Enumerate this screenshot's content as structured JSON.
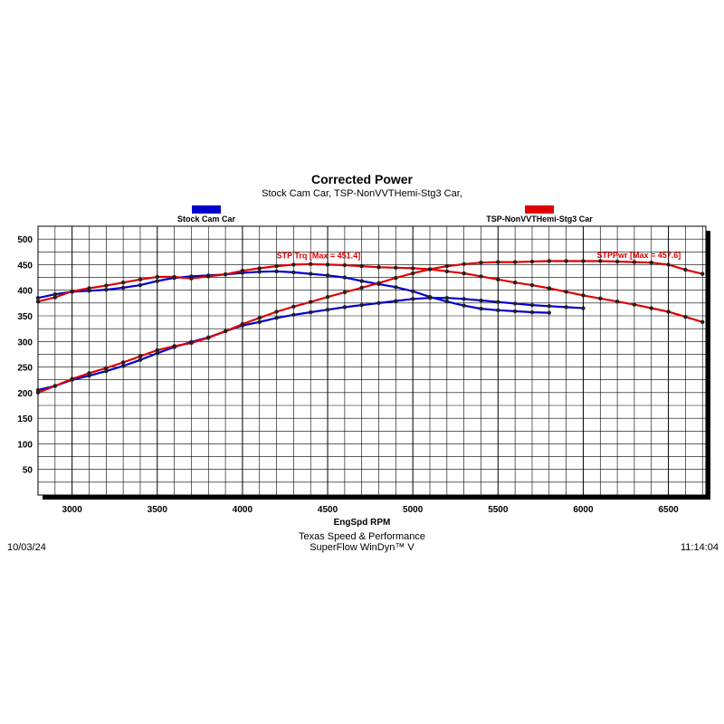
{
  "chart_data": {
    "type": "line",
    "title": "Corrected Power",
    "subtitle": "Stock Cam Car, TSP-NonVVTHemi-Stg3 Car,",
    "xlabel": "EngSpd RPM",
    "ylabel": "",
    "xlim": [
      2800,
      6720
    ],
    "ylim": [
      0,
      525
    ],
    "xticks": [
      3000,
      3500,
      4000,
      4500,
      5000,
      5500,
      6000,
      6500
    ],
    "yticks": [
      50,
      100,
      150,
      200,
      250,
      300,
      350,
      400,
      450,
      500
    ],
    "grid": true,
    "legend": [
      {
        "name": "Stock Cam Car",
        "color": "#0000cc"
      },
      {
        "name": "TSP-NonVVTHemi-Stg3 Car",
        "color": "#e00000"
      }
    ],
    "annotations": [
      {
        "text": "STP Trq [Max = 451.4]",
        "x": 4200,
        "y": 462
      },
      {
        "text": "STPPwr [Max = 457.6]",
        "x": 6080,
        "y": 463
      }
    ],
    "x": [
      2800,
      2900,
      3000,
      3100,
      3200,
      3300,
      3400,
      3500,
      3600,
      3700,
      3800,
      3900,
      4000,
      4100,
      4200,
      4300,
      4400,
      4500,
      4600,
      4700,
      4800,
      4900,
      5000,
      5100,
      5200,
      5300,
      5400,
      5500,
      5600,
      5700,
      5800,
      5900,
      6000,
      6100,
      6200,
      6300,
      6400,
      6500,
      6600,
      6700
    ],
    "series": [
      {
        "name": "Stock Cam Car",
        "metric": "Torque",
        "color": "#0000cc",
        "values": [
          385,
          392,
          397,
          399,
          401,
          405,
          410,
          418,
          424,
          427,
          429,
          431,
          434,
          436,
          437,
          435,
          432,
          429,
          425,
          418,
          412,
          406,
          398,
          387,
          378,
          370,
          364,
          361,
          359,
          357,
          356,
          null,
          null,
          null,
          null,
          null,
          null,
          null,
          null,
          null
        ]
      },
      {
        "name": "Stock Cam Car",
        "metric": "Power",
        "color": "#0000cc",
        "values": [
          205,
          213,
          225,
          233,
          242,
          252,
          264,
          277,
          289,
          299,
          308,
          320,
          331,
          338,
          346,
          352,
          357,
          362,
          367,
          371,
          375,
          379,
          383,
          385,
          385,
          383,
          380,
          377,
          374,
          371,
          369,
          367,
          365,
          null,
          null,
          null,
          null,
          null,
          null,
          null
        ]
      },
      {
        "name": "TSP-NonVVTHemi-Stg3 Car",
        "metric": "Torque",
        "color": "#e00000",
        "values": [
          378,
          386,
          398,
          404,
          409,
          415,
          421,
          426,
          426,
          423,
          427,
          431,
          438,
          443,
          447,
          450,
          451,
          450,
          449,
          447,
          445,
          444,
          443,
          441,
          437,
          433,
          427,
          421,
          415,
          410,
          404,
          397,
          390,
          384,
          378,
          372,
          365,
          358,
          348,
          338
        ]
      },
      {
        "name": "TSP-NonVVTHemi-Stg3 Car",
        "metric": "Power",
        "color": "#e00000",
        "values": [
          200,
          213,
          227,
          238,
          248,
          259,
          271,
          283,
          291,
          297,
          307,
          320,
          334,
          346,
          358,
          368,
          377,
          387,
          396,
          405,
          414,
          424,
          433,
          441,
          447,
          451,
          454,
          455,
          455,
          456,
          457,
          457,
          457,
          457,
          456,
          455,
          454,
          450,
          440,
          432
        ]
      }
    ]
  },
  "footer": {
    "date": "10/03/24",
    "company": "Texas Speed & Performance",
    "software": "SuperFlow WinDyn™ V",
    "time": "11:14:04"
  }
}
